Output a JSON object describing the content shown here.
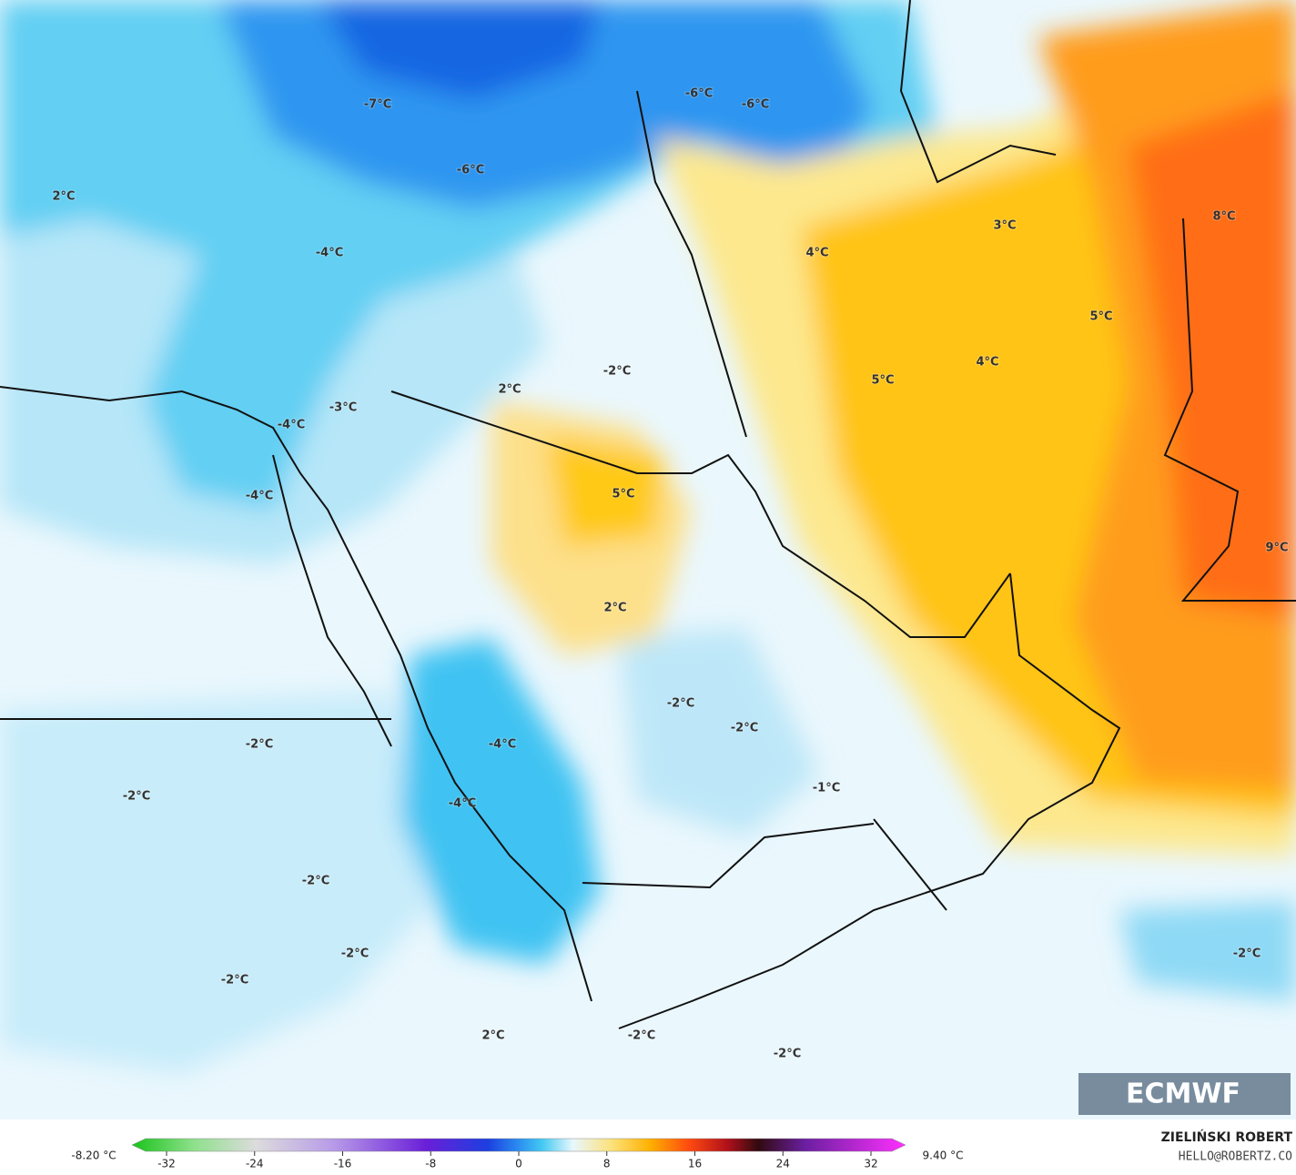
{
  "map_labels": [
    "-7°C",
    "-6°C",
    "-6°C",
    "-6°C",
    "2°C",
    "-4°C",
    "3°C",
    "8°C",
    "4°C",
    "5°C",
    "4°C",
    "5°C",
    "-2°C",
    "2°C",
    "-3°C",
    "-4°C",
    "5°C",
    "-4°C",
    "9°C",
    "2°C",
    "-2°C",
    "-2°C",
    "-4°C",
    "-2°C",
    "-1°C",
    "-2°C",
    "-4°C",
    "-2°C",
    "-2°C",
    "-2°C",
    "-2°C",
    "2°C",
    "-2°C",
    "-2°C"
  ],
  "colorbar": {
    "min_label": "-8.20 °C",
    "max_label": "9.40 °C",
    "ticks": [
      -32,
      -24,
      -16,
      -8,
      0,
      8,
      16,
      24,
      32
    ]
  },
  "logo": "ECMWF",
  "credit": {
    "author": "ZIELIŃSKI ROBERT",
    "email": "HELLO@ROBERTZ.CO"
  }
}
